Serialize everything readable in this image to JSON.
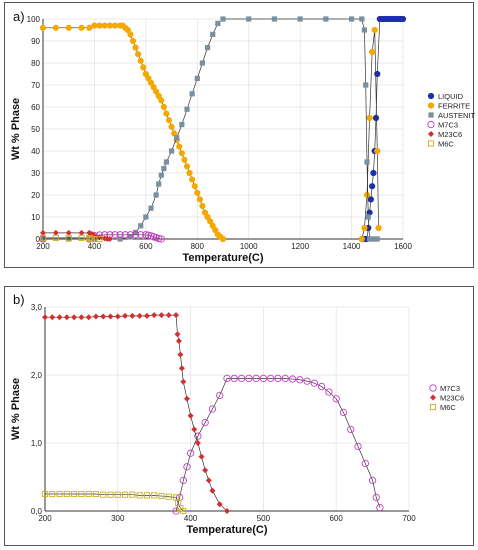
{
  "chart_data": [
    {
      "type": "line",
      "panel_label": "a)",
      "xlabel": "Temperature(C)",
      "ylabel": "Wt % Phase",
      "xlim": [
        200,
        1600
      ],
      "ylim": [
        0,
        100
      ],
      "xticks": [
        "200",
        "400",
        "600",
        "800",
        "1000",
        "1200",
        "1400",
        "1600"
      ],
      "yticks": [
        "0",
        "10",
        "20",
        "30",
        "40",
        "50",
        "60",
        "70",
        "80",
        "90",
        "100"
      ],
      "grid": true,
      "legend_position": "right",
      "series": [
        {
          "name": "LIQUID",
          "color": "#1c2fa8",
          "marker": "circle",
          "x": [
            1440,
            1450,
            1460,
            1465,
            1470,
            1475,
            1480,
            1485,
            1490,
            1495,
            1500,
            1510,
            1520,
            1530,
            1540,
            1550,
            1560,
            1570,
            1580,
            1590,
            1600
          ],
          "y": [
            0,
            0,
            0,
            5,
            12,
            18,
            24,
            30,
            40,
            55,
            75,
            100,
            100,
            100,
            100,
            100,
            100,
            100,
            100,
            100,
            100
          ]
        },
        {
          "name": "FERRITE",
          "color": "#f5a800",
          "marker": "circle",
          "x": [
            200,
            250,
            300,
            350,
            380,
            400,
            420,
            440,
            460,
            480,
            500,
            510,
            520,
            530,
            540,
            550,
            560,
            570,
            580,
            590,
            600,
            610,
            620,
            630,
            640,
            650,
            660,
            670,
            680,
            690,
            700,
            710,
            720,
            730,
            740,
            750,
            760,
            770,
            780,
            790,
            800,
            810,
            820,
            830,
            840,
            850,
            860,
            870,
            880,
            890,
            900,
            1440,
            1450,
            1460,
            1470,
            1480,
            1490,
            1500,
            1505
          ],
          "y": [
            96,
            96,
            96,
            96,
            96,
            97,
            97,
            97,
            97,
            97,
            97,
            97,
            96,
            95,
            93,
            90,
            87,
            84,
            81,
            78,
            75,
            73,
            71,
            69,
            67,
            65,
            63,
            60,
            57,
            54,
            51,
            48,
            45,
            42,
            39,
            36,
            33,
            30,
            27,
            24,
            21,
            18,
            15,
            12,
            10,
            8,
            6,
            4,
            2,
            1,
            0,
            0,
            5,
            20,
            55,
            85,
            95,
            40,
            5
          ]
        },
        {
          "name": "AUSTENITE",
          "color": "#7a8fa0",
          "marker": "square",
          "x": [
            200,
            300,
            400,
            500,
            540,
            560,
            580,
            600,
            620,
            640,
            650,
            660,
            670,
            680,
            700,
            720,
            740,
            760,
            780,
            800,
            820,
            840,
            860,
            880,
            900,
            1000,
            1100,
            1200,
            1300,
            1400,
            1440,
            1450,
            1455,
            1460,
            1465,
            1470,
            1480,
            1490,
            1500
          ],
          "y": [
            0,
            0,
            0,
            0,
            1,
            3,
            6,
            10,
            14,
            20,
            25,
            29,
            32,
            35,
            40,
            46,
            52,
            59,
            66,
            73,
            80,
            87,
            93,
            98,
            100,
            100,
            100,
            100,
            100,
            100,
            100,
            95,
            70,
            35,
            10,
            0,
            0,
            0,
            0
          ]
        },
        {
          "name": "M7C3",
          "color": "#c040c0",
          "marker": "circle-open",
          "x": [
            200,
            380,
            390,
            400,
            420,
            440,
            460,
            480,
            500,
            520,
            540,
            560,
            580,
            600,
            610,
            620,
            630,
            640,
            650,
            660
          ],
          "y": [
            0,
            0,
            1,
            1.5,
            1.8,
            1.9,
            1.9,
            1.9,
            1.9,
            1.9,
            1.9,
            1.9,
            1.9,
            1.9,
            1.7,
            1.4,
            1.0,
            0.6,
            0.2,
            0
          ]
        },
        {
          "name": "M23C6",
          "color": "#d03030",
          "marker": "diamond",
          "x": [
            200,
            250,
            300,
            350,
            380,
            390,
            400,
            420,
            440,
            450,
            460
          ],
          "y": [
            2.8,
            2.8,
            2.8,
            2.8,
            2.8,
            2.3,
            1.5,
            0.8,
            0.3,
            0,
            0
          ]
        },
        {
          "name": "M6C",
          "color": "#c8b020",
          "marker": "square-open",
          "x": [
            200,
            250,
            300,
            350,
            380,
            385,
            390,
            400,
            420
          ],
          "y": [
            0.5,
            0.5,
            0.5,
            0.5,
            0.4,
            0.2,
            0,
            0,
            0
          ]
        }
      ]
    },
    {
      "type": "line",
      "panel_label": "b)",
      "xlabel": "Temperature(C)",
      "ylabel": "Wt % Phase",
      "xlim": [
        200,
        700
      ],
      "ylim": [
        0,
        3
      ],
      "xticks": [
        "200",
        "300",
        "400",
        "500",
        "600",
        "700"
      ],
      "yticks": [
        "0,0",
        "1,0",
        "2,0",
        "3,0"
      ],
      "grid": true,
      "legend_position": "right",
      "series": [
        {
          "name": "M7C3",
          "color": "#c040c0",
          "marker": "circle-open",
          "x": [
            380,
            385,
            390,
            395,
            400,
            410,
            420,
            430,
            440,
            450,
            460,
            470,
            480,
            490,
            500,
            510,
            520,
            530,
            540,
            550,
            560,
            570,
            580,
            590,
            600,
            610,
            620,
            630,
            640,
            650,
            655,
            660
          ],
          "y": [
            0,
            0.2,
            0.45,
            0.65,
            0.85,
            1.1,
            1.3,
            1.5,
            1.7,
            1.95,
            1.95,
            1.95,
            1.95,
            1.95,
            1.95,
            1.95,
            1.95,
            1.95,
            1.94,
            1.93,
            1.91,
            1.88,
            1.83,
            1.75,
            1.65,
            1.45,
            1.2,
            0.95,
            0.7,
            0.45,
            0.2,
            0.05
          ]
        },
        {
          "name": "M23C6",
          "color": "#d03030",
          "marker": "diamond",
          "x": [
            200,
            210,
            220,
            230,
            240,
            250,
            260,
            270,
            280,
            290,
            300,
            310,
            320,
            330,
            340,
            350,
            360,
            370,
            380,
            382,
            384,
            386,
            388,
            390,
            395,
            400,
            405,
            410,
            415,
            420,
            425,
            430,
            440,
            450
          ],
          "y": [
            2.85,
            2.85,
            2.85,
            2.85,
            2.85,
            2.85,
            2.85,
            2.86,
            2.86,
            2.86,
            2.86,
            2.87,
            2.87,
            2.87,
            2.87,
            2.88,
            2.88,
            2.88,
            2.88,
            2.6,
            2.5,
            2.3,
            2.1,
            1.9,
            1.65,
            1.4,
            1.2,
            1.0,
            0.8,
            0.6,
            0.45,
            0.3,
            0.1,
            0
          ]
        },
        {
          "name": "M6C",
          "color": "#c8b020",
          "marker": "square-open",
          "x": [
            200,
            210,
            220,
            230,
            240,
            250,
            260,
            270,
            280,
            290,
            300,
            310,
            320,
            330,
            340,
            350,
            360,
            370,
            380,
            383,
            386,
            390
          ],
          "y": [
            0.25,
            0.25,
            0.25,
            0.25,
            0.25,
            0.25,
            0.25,
            0.25,
            0.24,
            0.24,
            0.24,
            0.24,
            0.24,
            0.23,
            0.23,
            0.23,
            0.22,
            0.21,
            0.2,
            0.12,
            0.04,
            0
          ]
        }
      ]
    }
  ]
}
